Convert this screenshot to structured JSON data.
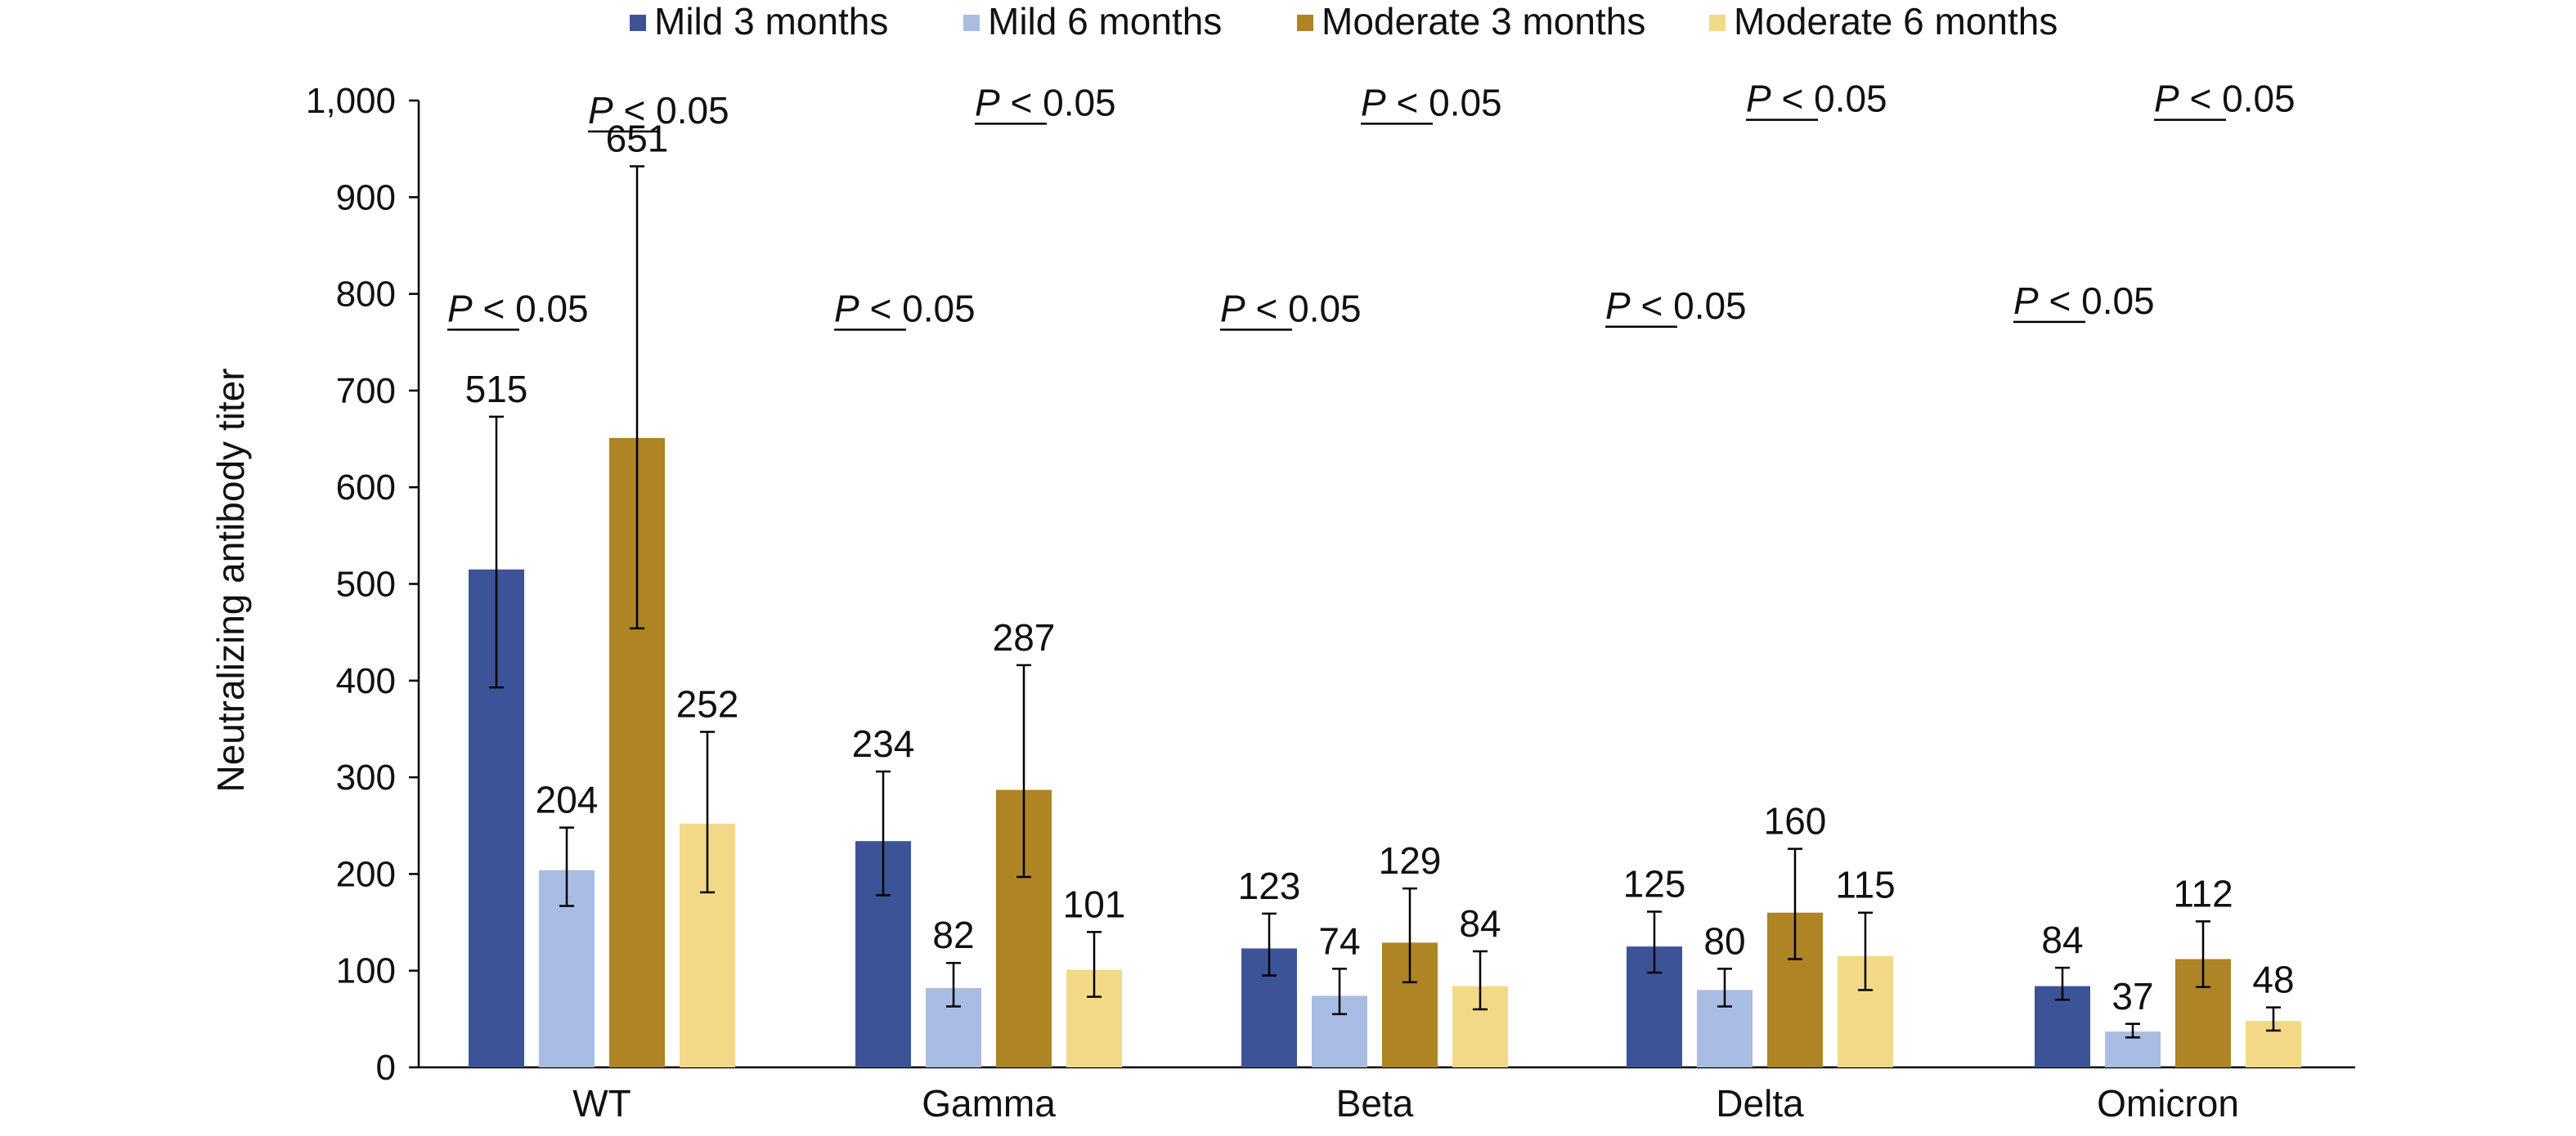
{
  "chart_data": {
    "type": "bar",
    "ylabel": "Neutralizing antibody titer",
    "xlabel": "",
    "ylim": [
      0,
      1000
    ],
    "yticks": [
      0,
      100,
      200,
      300,
      400,
      500,
      600,
      700,
      800,
      900,
      1000
    ],
    "ytick_labels": [
      "0",
      "100",
      "200",
      "300",
      "400",
      "500",
      "600",
      "700",
      "800",
      "900",
      "1,000"
    ],
    "categories": [
      "WT",
      "Gamma",
      "Beta",
      "Delta",
      "Omicron"
    ],
    "legend_position": "top",
    "series": [
      {
        "name": "Mild 3 months",
        "color": "#3c5497",
        "values": [
          515,
          234,
          123,
          125,
          84
        ],
        "err_low": [
          393,
          178,
          95,
          98,
          70
        ],
        "err_high": [
          673,
          306,
          159,
          161,
          103
        ]
      },
      {
        "name": "Mild 6 months",
        "color": "#a9bde4",
        "values": [
          204,
          82,
          74,
          80,
          37
        ],
        "err_low": [
          167,
          63,
          55,
          63,
          31
        ],
        "err_high": [
          248,
          108,
          102,
          102,
          45
        ]
      },
      {
        "name": "Moderate 3 months",
        "color": "#ae8424",
        "values": [
          651,
          287,
          129,
          160,
          112
        ],
        "err_low": [
          454,
          197,
          88,
          112,
          83
        ],
        "err_high": [
          932,
          416,
          185,
          226,
          151
        ]
      },
      {
        "name": "Moderate 6 months",
        "color": "#f3d987",
        "values": [
          252,
          101,
          84,
          115,
          48
        ],
        "err_low": [
          181,
          73,
          60,
          80,
          38
        ],
        "err_high": [
          347,
          140,
          120,
          160,
          62
        ]
      }
    ],
    "annotations": [
      {
        "category": "WT",
        "pair": "mild",
        "text_p": "P",
        "text_rest": " < 0.05",
        "y": 785
      },
      {
        "category": "WT",
        "pair": "moderate",
        "text_p": "P",
        "text_rest": " < 0.05",
        "y": 990
      },
      {
        "category": "Gamma",
        "pair": "mild",
        "text_p": "P",
        "text_rest": " < 0.05",
        "y": 785
      },
      {
        "category": "Gamma",
        "pair": "moderate",
        "text_p": "P",
        "text_rest": " < 0.05",
        "y": 998
      },
      {
        "category": "Beta",
        "pair": "mild",
        "text_p": "P",
        "text_rest": " < 0.05",
        "y": 785
      },
      {
        "category": "Beta",
        "pair": "moderate",
        "text_p": "P",
        "text_rest": " < 0.05",
        "y": 998
      },
      {
        "category": "Delta",
        "pair": "mild",
        "text_p": "P",
        "text_rest": " < 0.05",
        "y": 788
      },
      {
        "category": "Delta",
        "pair": "moderate",
        "text_p": "P",
        "text_rest": " < 0.05",
        "y": 1002
      },
      {
        "category": "Omicron",
        "pair": "mild",
        "text_p": "P",
        "text_rest": " < 0.05",
        "y": 793
      },
      {
        "category": "Omicron",
        "pair": "moderate",
        "text_p": "P",
        "text_rest": " < 0.05",
        "y": 1002
      }
    ]
  }
}
